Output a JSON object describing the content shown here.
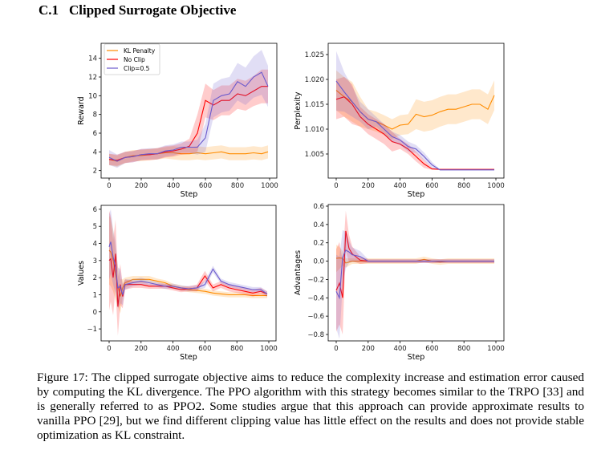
{
  "section": {
    "number": "C.1",
    "title": "Clipped Surrogate Objective"
  },
  "caption": "Figure 17: The clipped surrogate objective aims to reduce the complexity increase and estimation error caused by computing the KL divergence. The PPO algorithm with this strategy becomes similar to the TRPO [33] and is generally referred to as PPO2. Some studies argue that this approach can provide approximate results to vanilla PPO [29], but we find different clipping value has little effect on the results and does not provide stable optimization as KL constraint.",
  "colors": {
    "KL Penalty": "#ff8c00",
    "No Clip": "#ff0000",
    "Clip=0.5": "#6a5acd"
  },
  "chart_data": [
    {
      "type": "line",
      "xlabel": "Step",
      "ylabel": "Reward",
      "xlim": [
        0,
        1000
      ],
      "ylim": [
        1.2,
        15.6
      ],
      "xticks": [
        0,
        200,
        400,
        600,
        800,
        1000
      ],
      "yticks": [
        2,
        4,
        6,
        8,
        10,
        12,
        14
      ],
      "legend": "top-left",
      "grid": false,
      "x": [
        0,
        50,
        100,
        150,
        200,
        250,
        300,
        350,
        400,
        450,
        500,
        550,
        600,
        650,
        700,
        750,
        800,
        850,
        900,
        950,
        990
      ],
      "series": [
        {
          "name": "KL Penalty",
          "values": [
            3.2,
            3.0,
            3.4,
            3.6,
            3.6,
            3.7,
            3.8,
            3.9,
            3.9,
            3.8,
            3.8,
            3.9,
            3.8,
            3.9,
            4.0,
            3.8,
            3.8,
            3.8,
            3.9,
            3.8,
            4.0
          ],
          "spread": [
            0.6,
            0.6,
            0.6,
            0.6,
            0.6,
            0.6,
            0.6,
            0.6,
            0.7,
            0.7,
            0.7,
            0.7,
            0.7,
            0.7,
            0.7,
            0.7,
            0.7,
            0.7,
            0.7,
            0.7,
            0.7
          ]
        },
        {
          "name": "No Clip",
          "values": [
            3.2,
            3.1,
            3.4,
            3.5,
            3.7,
            3.7,
            3.8,
            4.0,
            4.1,
            4.3,
            4.6,
            6.0,
            9.5,
            9.0,
            9.5,
            9.5,
            10.2,
            10.0,
            10.5,
            11.0,
            11.0
          ],
          "spread": [
            0.6,
            0.6,
            0.6,
            0.6,
            0.6,
            0.6,
            0.6,
            0.6,
            0.6,
            0.6,
            0.8,
            2.0,
            1.8,
            1.6,
            1.6,
            1.6,
            1.6,
            1.6,
            1.6,
            1.8,
            1.8
          ]
        },
        {
          "name": "Clip=0.5",
          "values": [
            3.4,
            3.0,
            3.4,
            3.5,
            3.7,
            3.8,
            3.8,
            4.1,
            4.2,
            4.5,
            4.5,
            4.5,
            5.5,
            9.5,
            10.0,
            10.2,
            11.5,
            11.0,
            12.0,
            12.5,
            11.0
          ],
          "spread": [
            0.8,
            0.7,
            0.6,
            0.6,
            0.6,
            0.6,
            0.6,
            0.6,
            0.6,
            0.6,
            0.6,
            0.8,
            1.5,
            1.8,
            1.8,
            1.8,
            2.0,
            2.0,
            2.2,
            2.4,
            2.2
          ]
        }
      ]
    },
    {
      "type": "line",
      "xlabel": "Step",
      "ylabel": "Perplexity",
      "xlim": [
        0,
        1000
      ],
      "ylim": [
        1.00016,
        1.02726
      ],
      "xticks": [
        0,
        200,
        400,
        600,
        800,
        1000
      ],
      "yticks": [
        1.005,
        1.01,
        1.015,
        1.02,
        1.025
      ],
      "grid": false,
      "x": [
        0,
        50,
        100,
        150,
        200,
        250,
        300,
        350,
        400,
        450,
        500,
        550,
        600,
        650,
        700,
        750,
        800,
        850,
        900,
        950,
        990
      ],
      "series": [
        {
          "name": "KL Penalty",
          "values": [
            1.0178,
            1.0165,
            1.0155,
            1.0135,
            1.012,
            1.0115,
            1.0108,
            1.01,
            1.0108,
            1.011,
            1.013,
            1.0125,
            1.0128,
            1.0135,
            1.014,
            1.014,
            1.0145,
            1.015,
            1.015,
            1.014,
            1.0168
          ],
          "spread": [
            0.004,
            0.004,
            0.004,
            0.003,
            0.002,
            0.002,
            0.002,
            0.002,
            0.002,
            0.002,
            0.003,
            0.003,
            0.003,
            0.003,
            0.003,
            0.003,
            0.003,
            0.003,
            0.003,
            0.003,
            0.003
          ]
        },
        {
          "name": "No Clip",
          "values": [
            1.016,
            1.0165,
            1.015,
            1.0125,
            1.011,
            1.01,
            1.009,
            1.0075,
            1.007,
            1.006,
            1.0045,
            1.003,
            1.002,
            1.0019,
            1.0019,
            1.0019,
            1.0019,
            1.0019,
            1.0019,
            1.0019,
            1.0019
          ],
          "spread": [
            0.004,
            0.004,
            0.004,
            0.002,
            0.002,
            0.002,
            0.002,
            0.002,
            0.001,
            0.001,
            0.001,
            0.0008,
            0.0002,
            0.0001,
            0.0001,
            0.0001,
            0.0001,
            0.0001,
            0.0001,
            0.0001,
            0.0001
          ]
        },
        {
          "name": "Clip=0.5",
          "values": [
            1.0197,
            1.0175,
            1.0155,
            1.0135,
            1.012,
            1.0115,
            1.01,
            1.0085,
            1.0078,
            1.0065,
            1.006,
            1.0045,
            1.0028,
            1.0018,
            1.0018,
            1.0018,
            1.0018,
            1.0018,
            1.0018,
            1.0018,
            1.0018
          ],
          "spread": [
            0.006,
            0.004,
            0.003,
            0.002,
            0.002,
            0.001,
            0.001,
            0.001,
            0.001,
            0.001,
            0.0008,
            0.0008,
            0.0006,
            0.0001,
            0.0001,
            0.0001,
            0.0001,
            0.0001,
            0.0001,
            0.0001,
            0.0001
          ]
        }
      ]
    },
    {
      "type": "line",
      "xlabel": "Step",
      "ylabel": "Values",
      "xlim": [
        0,
        1000
      ],
      "ylim": [
        -1.7,
        6.23
      ],
      "xticks": [
        0,
        200,
        400,
        600,
        800,
        1000
      ],
      "yticks": [
        -1,
        0,
        1,
        2,
        3,
        4,
        5,
        6
      ],
      "grid": false,
      "x": [
        0,
        10,
        25,
        40,
        55,
        70,
        85,
        100,
        150,
        200,
        250,
        300,
        350,
        400,
        450,
        500,
        550,
        600,
        650,
        700,
        750,
        800,
        850,
        900,
        950,
        990
      ],
      "series": [
        {
          "name": "KL Penalty",
          "values": [
            3.6,
            3.5,
            3.0,
            2.2,
            1.5,
            0.9,
            1.4,
            1.7,
            1.9,
            1.9,
            1.9,
            1.8,
            1.7,
            1.5,
            1.4,
            1.3,
            1.25,
            1.2,
            1.1,
            1.05,
            1.0,
            1.0,
            1.0,
            0.95,
            0.95,
            0.95
          ],
          "spread": [
            2.0,
            2.0,
            1.8,
            1.5,
            1.2,
            1.0,
            0.5,
            0.3,
            0.2,
            0.2,
            0.2,
            0.15,
            0.15,
            0.15,
            0.15,
            0.15,
            0.15,
            0.15,
            0.15,
            0.15,
            0.15,
            0.15,
            0.15,
            0.15,
            0.15,
            0.15
          ]
        },
        {
          "name": "No Clip",
          "values": [
            3.0,
            3.1,
            2.0,
            3.4,
            0.3,
            1.6,
            0.9,
            1.6,
            1.6,
            1.6,
            1.5,
            1.5,
            1.5,
            1.4,
            1.3,
            1.35,
            1.4,
            2.1,
            1.4,
            1.6,
            1.4,
            1.3,
            1.2,
            1.1,
            1.2,
            1.05
          ],
          "spread": [
            2.9,
            2.5,
            2.2,
            2.0,
            1.7,
            1.2,
            0.7,
            0.3,
            0.2,
            0.2,
            0.15,
            0.15,
            0.15,
            0.15,
            0.15,
            0.15,
            0.2,
            0.3,
            0.2,
            0.2,
            0.2,
            0.2,
            0.2,
            0.2,
            0.2,
            0.15
          ]
        },
        {
          "name": "Clip=0.5",
          "values": [
            3.8,
            4.1,
            3.2,
            2.6,
            1.4,
            1.5,
            1.0,
            1.6,
            1.7,
            1.8,
            1.7,
            1.6,
            1.5,
            1.5,
            1.4,
            1.35,
            1.4,
            1.6,
            2.5,
            1.8,
            1.6,
            1.5,
            1.4,
            1.3,
            1.3,
            1.05
          ],
          "spread": [
            1.9,
            1.9,
            1.6,
            1.5,
            1.2,
            1.0,
            0.6,
            0.3,
            0.2,
            0.2,
            0.15,
            0.15,
            0.15,
            0.15,
            0.15,
            0.15,
            0.15,
            0.2,
            0.2,
            0.15,
            0.15,
            0.15,
            0.15,
            0.15,
            0.15,
            0.15
          ]
        }
      ]
    },
    {
      "type": "line",
      "xlabel": "Step",
      "ylabel": "Advantages",
      "xlim": [
        0,
        1000
      ],
      "ylim": [
        -0.87,
        0.6175
      ],
      "xticks": [
        0,
        200,
        400,
        600,
        800,
        1000
      ],
      "yticks": [
        -0.8,
        -0.6,
        -0.4,
        -0.2,
        0.0,
        0.2,
        0.4,
        0.6
      ],
      "grid": false,
      "x": [
        0,
        20,
        40,
        60,
        80,
        100,
        150,
        200,
        250,
        300,
        350,
        400,
        450,
        500,
        550,
        600,
        650,
        700,
        750,
        800,
        850,
        900,
        950,
        990
      ],
      "series": [
        {
          "name": "KL Penalty",
          "values": [
            0.03,
            0.035,
            0.03,
            -0.02,
            -0.01,
            0.0,
            0.0,
            0.0,
            0.0,
            0.0,
            0.0,
            0.0,
            0.0,
            0.0,
            0.02,
            0.0,
            -0.01,
            0.0,
            0.0,
            0.0,
            0.0,
            0.0,
            0.0,
            0.0
          ],
          "spread": [
            0.15,
            0.12,
            0.08,
            0.05,
            0.04,
            0.03,
            0.03,
            0.03,
            0.03,
            0.03,
            0.03,
            0.03,
            0.03,
            0.03,
            0.03,
            0.03,
            0.03,
            0.03,
            0.03,
            0.03,
            0.03,
            0.03,
            0.03,
            0.03
          ]
        },
        {
          "name": "No Clip",
          "values": [
            -0.32,
            -0.24,
            -0.4,
            0.33,
            0.14,
            0.08,
            0.01,
            0.0,
            0.0,
            0.0,
            0.0,
            0.0,
            0.0,
            0.0,
            0.0,
            0.0,
            0.0,
            0.0,
            0.0,
            0.0,
            0.0,
            0.0,
            0.0,
            0.0
          ],
          "spread": [
            0.45,
            0.45,
            0.4,
            0.22,
            0.15,
            0.08,
            0.04,
            0.02,
            0.02,
            0.02,
            0.02,
            0.02,
            0.02,
            0.02,
            0.02,
            0.02,
            0.02,
            0.02,
            0.02,
            0.02,
            0.02,
            0.02,
            0.02,
            0.02
          ]
        },
        {
          "name": "Clip=0.5",
          "values": [
            -0.33,
            -0.4,
            0.04,
            0.12,
            0.1,
            0.07,
            0.05,
            0.0,
            0.0,
            0.0,
            0.0,
            0.0,
            0.0,
            0.0,
            0.0,
            0.0,
            0.0,
            0.0,
            0.0,
            0.0,
            0.0,
            0.0,
            0.0,
            0.0
          ],
          "spread": [
            0.4,
            0.45,
            0.3,
            0.2,
            0.12,
            0.08,
            0.06,
            0.02,
            0.02,
            0.02,
            0.02,
            0.02,
            0.02,
            0.02,
            0.02,
            0.02,
            0.02,
            0.02,
            0.02,
            0.02,
            0.02,
            0.02,
            0.02,
            0.02
          ]
        }
      ]
    }
  ]
}
